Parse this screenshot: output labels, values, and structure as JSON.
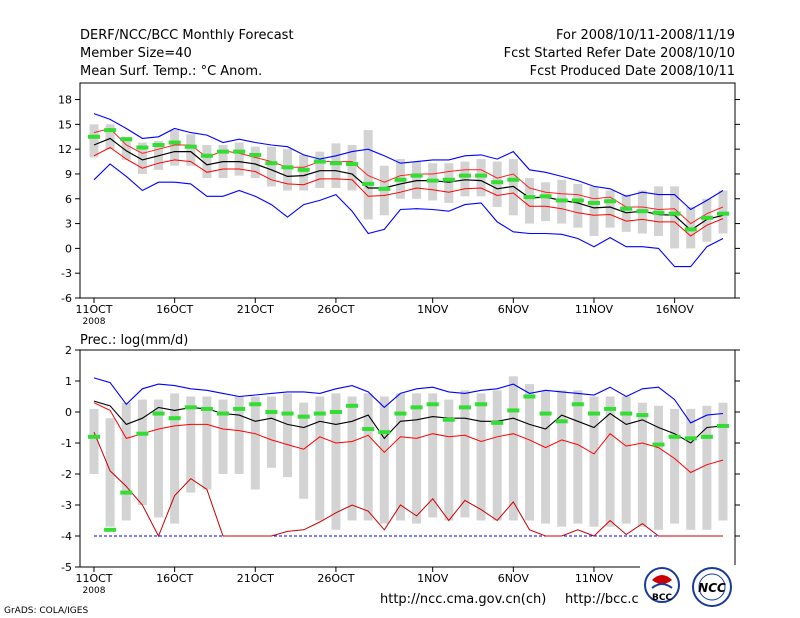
{
  "header": {
    "left": [
      "DERF/NCC/BCC Monthly Forecast",
      "Member Size=40",
      "Mean Surf. Temp.: °C Anom."
    ],
    "right": [
      "For 2008/10/11-2008/11/19",
      "Fcst Started Refer Date 2008/10/10",
      "Fcst Produced Date 2008/10/11"
    ]
  },
  "footer": {
    "grads": "GrADS: COLA/IGES",
    "url1": "http://ncc.cma.gov.cn(ch)",
    "url2": "http://bcc.c",
    "logo1": "BCC",
    "logo2": "NCC"
  },
  "x_ticks": [
    {
      "day": 0,
      "label": "11OCT",
      "sub": "2008"
    },
    {
      "day": 5,
      "label": "16OCT",
      "sub": ""
    },
    {
      "day": 10,
      "label": "21OCT",
      "sub": ""
    },
    {
      "day": 15,
      "label": "26OCT",
      "sub": ""
    },
    {
      "day": 21,
      "label": "1NOV",
      "sub": ""
    },
    {
      "day": 26,
      "label": "6NOV",
      "sub": ""
    },
    {
      "day": 31,
      "label": "11NOV",
      "sub": ""
    },
    {
      "day": 36,
      "label": "16NOV",
      "sub": ""
    }
  ],
  "colors": {
    "max": "#0000ff",
    "min": "#0000ff",
    "upper": "#ff0000",
    "lower": "#cc0000",
    "mean": "#000000",
    "green": "#33dd33",
    "box": "#d3d3d3"
  },
  "chart_data": [
    {
      "type": "line",
      "title": "Mean Surf. Temp.: °C Anom.",
      "ylabel": "",
      "ylim": [
        -6,
        20
      ],
      "yticks": [
        -6,
        -3,
        0,
        3,
        6,
        9,
        12,
        15,
        18
      ],
      "x_start": "2008-10-11",
      "days": 40,
      "series": [
        {
          "name": "max",
          "values": [
            16.3,
            15.6,
            14.5,
            13.3,
            13.5,
            14.5,
            14.0,
            13.7,
            12.8,
            13.2,
            12.8,
            12.5,
            12.3,
            11.3,
            10.8,
            11.2,
            11.7,
            12.0,
            11.2,
            10.3,
            10.5,
            10.7,
            10.7,
            11.2,
            11.3,
            10.8,
            11.7,
            9.5,
            9.2,
            8.7,
            8.2,
            7.5,
            7.2,
            6.3,
            6.8,
            6.5,
            6.5,
            4.7,
            5.8,
            7.0
          ]
        },
        {
          "name": "upper",
          "values": [
            14.0,
            14.5,
            12.5,
            11.5,
            12.0,
            12.5,
            12.5,
            11.0,
            11.8,
            11.5,
            11.0,
            10.5,
            9.8,
            9.8,
            10.5,
            10.5,
            10.5,
            8.8,
            8.0,
            8.8,
            9.0,
            9.0,
            9.3,
            9.5,
            9.5,
            8.5,
            9.0,
            7.3,
            6.8,
            6.6,
            6.5,
            6.0,
            6.2,
            5.0,
            5.0,
            4.7,
            4.8,
            3.0,
            4.2,
            5.0
          ]
        },
        {
          "name": "mean",
          "values": [
            12.5,
            13.3,
            11.8,
            10.7,
            11.2,
            11.7,
            11.7,
            10.1,
            10.5,
            10.5,
            10.2,
            9.5,
            8.7,
            8.8,
            9.4,
            9.4,
            9.0,
            7.3,
            7.3,
            7.8,
            8.2,
            8.2,
            8.0,
            8.3,
            8.2,
            7.2,
            7.5,
            6.1,
            6.2,
            5.8,
            5.5,
            4.9,
            5.0,
            4.3,
            4.5,
            4.1,
            4.0,
            2.2,
            3.5,
            4.0
          ]
        },
        {
          "name": "lower",
          "values": [
            11.2,
            12.2,
            10.8,
            9.7,
            10.3,
            10.7,
            10.5,
            9.2,
            9.6,
            9.6,
            9.3,
            8.3,
            7.8,
            7.7,
            8.4,
            8.4,
            8.3,
            6.3,
            6.4,
            6.8,
            7.3,
            7.1,
            6.8,
            7.2,
            7.3,
            6.4,
            6.7,
            5.1,
            5.1,
            4.8,
            4.3,
            4.0,
            4.1,
            3.3,
            3.5,
            3.2,
            3.2,
            1.5,
            2.8,
            3.6
          ]
        },
        {
          "name": "min",
          "values": [
            8.3,
            10.2,
            8.7,
            7.0,
            8.0,
            8.0,
            7.8,
            6.3,
            6.3,
            7.0,
            6.3,
            5.3,
            3.8,
            5.3,
            5.8,
            6.5,
            4.5,
            1.8,
            2.3,
            4.7,
            4.8,
            4.7,
            4.5,
            5.3,
            5.5,
            3.2,
            2.0,
            1.8,
            1.8,
            1.7,
            1.2,
            0.2,
            1.3,
            0.2,
            0.2,
            0.0,
            -2.2,
            -2.2,
            0.2,
            1.2
          ]
        },
        {
          "name": "observed",
          "values": [
            13.5,
            14.3,
            13.2,
            12.2,
            12.5,
            12.8,
            12.3,
            11.2,
            11.7,
            11.7,
            11.3,
            10.3,
            9.8,
            9.5,
            10.5,
            10.3,
            10.2,
            7.8,
            7.2,
            8.3,
            8.8,
            8.2,
            8.3,
            8.8,
            8.8,
            8.0,
            8.3,
            6.2,
            6.3,
            5.8,
            5.8,
            5.5,
            5.7,
            4.8,
            4.5,
            4.3,
            4.2,
            2.3,
            3.7,
            4.2
          ]
        },
        {
          "name": "box_low",
          "values": [
            11.0,
            12.0,
            10.7,
            9.0,
            9.5,
            10.0,
            10.0,
            8.5,
            8.5,
            8.8,
            8.5,
            7.5,
            7.0,
            7.0,
            7.3,
            7.3,
            7.0,
            3.5,
            4.0,
            6.0,
            6.0,
            5.8,
            5.5,
            6.3,
            6.3,
            5.0,
            4.0,
            3.0,
            3.3,
            3.0,
            2.5,
            1.5,
            2.5,
            2.0,
            1.8,
            1.5,
            0.0,
            0.0,
            0.8,
            1.8
          ]
        },
        {
          "name": "box_high",
          "values": [
            15.0,
            15.0,
            13.5,
            12.8,
            13.0,
            14.3,
            13.8,
            12.5,
            12.5,
            12.8,
            12.3,
            12.3,
            12.0,
            11.3,
            11.7,
            12.7,
            12.5,
            14.3,
            10.0,
            10.8,
            10.5,
            10.3,
            10.3,
            10.5,
            10.8,
            10.5,
            10.8,
            8.5,
            8.0,
            8.3,
            7.8,
            7.5,
            7.0,
            6.5,
            7.0,
            7.5,
            7.5,
            5.0,
            6.0,
            7.0
          ]
        }
      ]
    },
    {
      "type": "line",
      "title": "Prec.: log(mm/d)",
      "ylabel": "",
      "ylim": [
        -5,
        2
      ],
      "yticks": [
        -5,
        -4,
        -3,
        -2,
        -1,
        0,
        1,
        2
      ],
      "x_start": "2008-10-11",
      "days": 40,
      "series": [
        {
          "name": "max",
          "values": [
            1.1,
            0.95,
            0.25,
            0.75,
            0.9,
            0.85,
            0.75,
            0.7,
            0.6,
            0.5,
            0.55,
            0.6,
            0.65,
            0.65,
            0.6,
            0.75,
            0.85,
            0.65,
            0.15,
            0.6,
            0.75,
            0.8,
            0.65,
            0.6,
            0.7,
            0.75,
            0.9,
            0.6,
            0.7,
            0.65,
            0.6,
            0.55,
            0.8,
            0.5,
            0.75,
            0.8,
            0.4,
            -0.35,
            -0.1,
            -0.05
          ]
        },
        {
          "name": "upper",
          "values": [
            0.35,
            0.2,
            -0.4,
            -0.2,
            0.15,
            0.05,
            0.15,
            0.1,
            -0.05,
            -0.1,
            -0.3,
            -0.2,
            -0.4,
            -0.5,
            -0.3,
            -0.4,
            -0.3,
            -0.1,
            -0.85,
            -0.3,
            -0.25,
            -0.15,
            -0.2,
            -0.2,
            -0.3,
            -0.3,
            -0.2,
            -0.4,
            -0.55,
            -0.1,
            -0.3,
            -0.5,
            -0.05,
            -0.4,
            -0.25,
            -0.5,
            -0.7,
            -1.0,
            -0.5,
            -0.45
          ]
        },
        {
          "name": "mean",
          "values": [
            0.45,
            0.25,
            -0.45,
            -0.2,
            -0.05,
            0.05,
            0.15,
            0.05,
            -0.05,
            -0.1,
            -0.15,
            -0.25,
            -0.4,
            -0.2,
            -0.1,
            -0.2,
            -0.15,
            -0.1,
            -0.85,
            -0.3,
            -0.25,
            -0.15,
            -0.2,
            -0.2,
            -0.3,
            -0.3,
            -0.2,
            -0.4,
            -0.55,
            -0.1,
            -0.3,
            -0.5,
            -0.05,
            -0.4,
            -0.25,
            -0.5,
            -0.6,
            -1.15,
            -0.85,
            -0.75
          ]
        },
        {
          "name": "lower",
          "values": [
            0.3,
            0.05,
            -0.85,
            -0.7,
            -0.55,
            -0.45,
            -0.4,
            -0.4,
            -0.55,
            -0.6,
            -0.7,
            -0.9,
            -1.05,
            -1.2,
            -0.8,
            -1.0,
            -0.95,
            -0.75,
            -1.3,
            -0.8,
            -0.85,
            -0.7,
            -0.8,
            -0.75,
            -0.95,
            -0.8,
            -0.7,
            -0.9,
            -1.15,
            -0.9,
            -1.05,
            -1.35,
            -0.7,
            -1.1,
            -1.0,
            -1.15,
            -1.5,
            -1.95,
            -1.7,
            -1.55
          ]
        },
        {
          "name": "lowest",
          "values": [
            -0.65,
            -1.9,
            -2.4,
            -3.0,
            -4.0,
            -2.7,
            -2.15,
            -2.5,
            -4.0,
            -4.0,
            -4.0,
            -4.0,
            -3.85,
            -3.8,
            -3.55,
            -3.25,
            -3.0,
            -3.2,
            -3.8,
            -3.0,
            -3.35,
            -2.8,
            -3.5,
            -2.85,
            -3.15,
            -3.5,
            -2.9,
            -3.8,
            -4.0,
            -4.0,
            -3.8,
            -4.0,
            -3.5,
            -3.95,
            -3.6,
            -4.0,
            -4.0,
            -4.0,
            -4.0,
            -4.0
          ]
        },
        {
          "name": "min",
          "values": [
            -4.0,
            -4.0,
            -4.0,
            -4.0,
            -4.0,
            -4.0,
            -4.0,
            -4.0,
            -4.0,
            -4.0,
            -4.0,
            -4.0,
            -4.0,
            -4.0,
            -4.0,
            -4.0,
            -4.0,
            -4.0,
            -4.0,
            -4.0,
            -4.0,
            -4.0,
            -4.0,
            -4.0,
            -4.0,
            -4.0,
            -4.0,
            -4.0,
            -4.0,
            -4.0,
            -4.0,
            -4.0,
            -4.0,
            -4.0,
            -4.0,
            -4.0,
            -4.0,
            -4.0,
            -4.0,
            -4.0
          ]
        },
        {
          "name": "observed",
          "values": [
            -0.8,
            -3.8,
            -2.6,
            -0.7,
            -0.05,
            -0.2,
            0.15,
            0.1,
            -0.05,
            0.1,
            0.25,
            0.0,
            -0.05,
            -0.15,
            -0.05,
            0.0,
            0.2,
            -0.55,
            -0.65,
            -0.05,
            0.15,
            0.25,
            -0.25,
            0.15,
            0.25,
            -0.35,
            0.05,
            0.5,
            -0.05,
            -0.3,
            0.25,
            -0.05,
            0.1,
            -0.05,
            -0.1,
            -1.05,
            -0.8,
            -0.85,
            -0.8,
            -0.45
          ]
        },
        {
          "name": "box_low",
          "values": [
            -2.0,
            -3.7,
            -3.5,
            -3.0,
            -3.4,
            -3.6,
            -2.6,
            -2.5,
            -2.0,
            -2.0,
            -2.5,
            -1.8,
            -2.1,
            -2.8,
            -3.5,
            -3.8,
            -3.5,
            -3.5,
            -3.6,
            -3.5,
            -3.6,
            -3.4,
            -3.5,
            -3.4,
            -3.5,
            -3.5,
            -3.5,
            -3.5,
            -3.6,
            -3.7,
            -3.6,
            -3.7,
            -3.7,
            -3.6,
            -3.7,
            -3.8,
            -3.6,
            -3.8,
            -3.8,
            -3.5
          ]
        },
        {
          "name": "box_high",
          "values": [
            0.1,
            -0.2,
            0.3,
            0.4,
            0.4,
            0.6,
            0.5,
            0.5,
            0.4,
            0.5,
            0.5,
            0.5,
            0.6,
            0.3,
            0.5,
            0.6,
            0.5,
            0.6,
            0.5,
            0.6,
            0.6,
            0.6,
            0.4,
            0.7,
            0.6,
            0.7,
            1.15,
            0.9,
            0.7,
            0.7,
            0.7,
            0.5,
            0.5,
            0.5,
            0.3,
            0.2,
            0.1,
            0.1,
            0.2,
            0.3
          ]
        }
      ]
    }
  ]
}
